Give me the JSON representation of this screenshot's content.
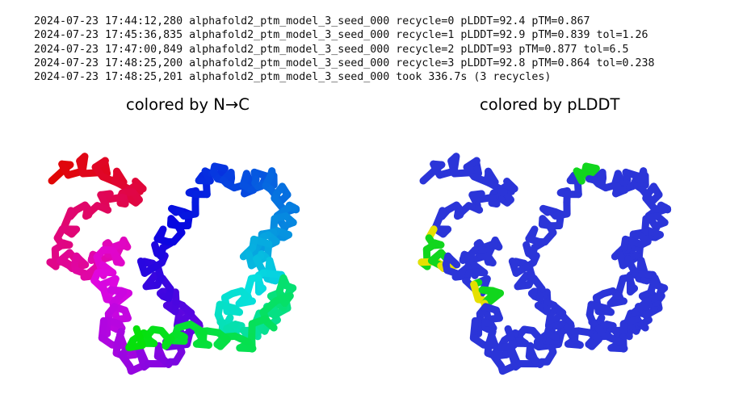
{
  "log": {
    "lines": [
      "2024-07-23 17:44:12,280 alphafold2_ptm_model_3_seed_000 recycle=0 pLDDT=92.4 pTM=0.867",
      "2024-07-23 17:45:36,835 alphafold2_ptm_model_3_seed_000 recycle=1 pLDDT=92.9 pTM=0.839 tol=1.26",
      "2024-07-23 17:47:00,849 alphafold2_ptm_model_3_seed_000 recycle=2 pLDDT=93 pTM=0.877 tol=6.5",
      "2024-07-23 17:48:25,200 alphafold2_ptm_model_3_seed_000 recycle=3 pLDDT=92.8 pTM=0.864 tol=0.238",
      "2024-07-23 17:48:25,201 alphafold2_ptm_model_3_seed_000 took 336.7s (3 recycles)"
    ]
  },
  "panels": {
    "left": {
      "title": "colored by N→C",
      "color_mode": "rainbow"
    },
    "right": {
      "title": "colored by pLDDT",
      "color_mode": "plddt"
    }
  },
  "colors": {
    "plddt_high": "#2b35d8",
    "plddt_mid": "#33c7e6",
    "plddt_low_green": "#11d61d",
    "plddt_low_yellow": "#e6e000",
    "plddt_very_low": "#ff0022"
  }
}
